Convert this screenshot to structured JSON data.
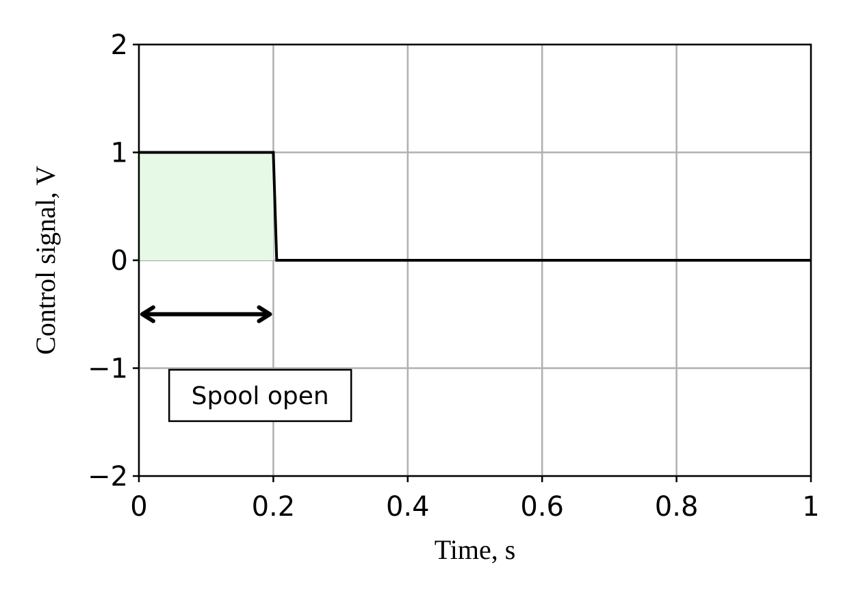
{
  "chart_data": {
    "type": "line",
    "xlabel": "Time, s",
    "ylabel": "Control signal, V",
    "xlim": [
      0,
      1
    ],
    "ylim": [
      -2,
      2
    ],
    "x_ticks": [
      0,
      0.2,
      0.4,
      0.6,
      0.8,
      1
    ],
    "x_tick_labels": [
      "0",
      "0.2",
      "0.4",
      "0.6",
      "0.8",
      "1"
    ],
    "y_ticks": [
      -2,
      -1,
      0,
      1,
      2
    ],
    "y_tick_labels": [
      "−2",
      "−1",
      "0",
      "1",
      "2"
    ],
    "grid": true,
    "series": [
      {
        "x": [
          0,
          0.2,
          0.205,
          1
        ],
        "y": [
          1,
          1,
          0,
          0
        ],
        "color": "#000000"
      }
    ],
    "shaded_region": {
      "x": [
        0,
        0.2
      ],
      "y": [
        0,
        1
      ],
      "color": "#e6f8e6"
    },
    "annotation": {
      "text": "Spool open",
      "arrow_x": [
        0.005,
        0.195
      ],
      "arrow_y": -0.5,
      "box_x": 0.045,
      "box_y": -1.25
    }
  }
}
